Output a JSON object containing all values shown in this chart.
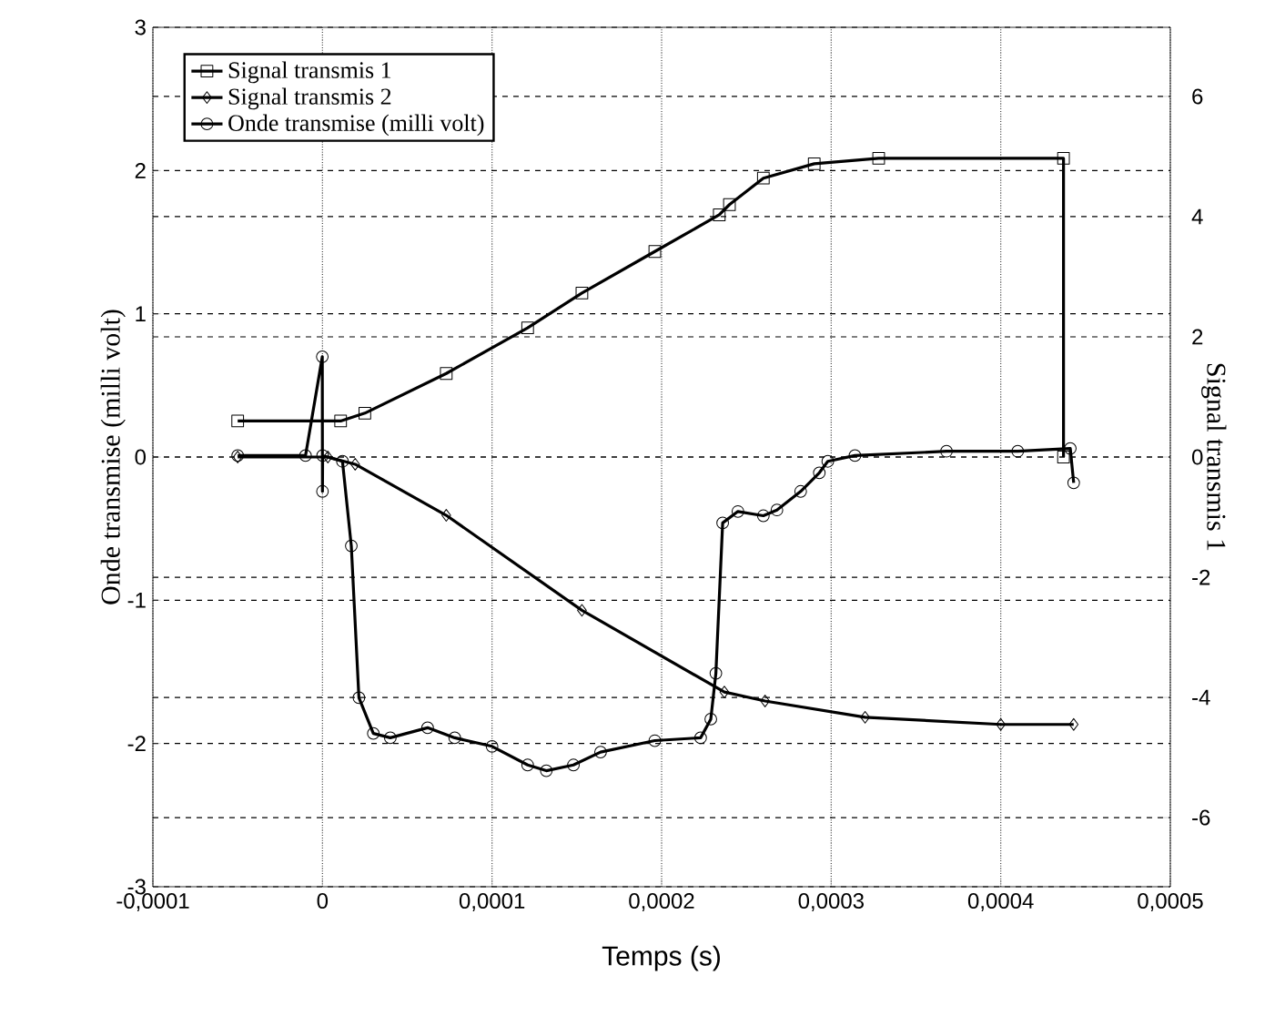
{
  "chart_data": {
    "type": "line",
    "xlabel": "Temps (s)",
    "ylabel": "Onde transmise (milli volt)",
    "y2label": "Signal transmis 1",
    "xlim": [
      -0.0001,
      0.0005
    ],
    "xticks": [
      {
        "value": -0.0001,
        "label": "-0,0001"
      },
      {
        "value": 0,
        "label": "0"
      },
      {
        "value": 0.0001,
        "label": "0,0001"
      },
      {
        "value": 0.0002,
        "label": "0,0002"
      },
      {
        "value": 0.0003,
        "label": "0,0003"
      },
      {
        "value": 0.0004,
        "label": "0,0004"
      },
      {
        "value": 0.0005,
        "label": "0,0005"
      }
    ],
    "ylim": [
      -3,
      3
    ],
    "yticks": [
      -3,
      -2,
      -1,
      0,
      1,
      2,
      3
    ],
    "y2lim": [
      -7.15,
      7.15
    ],
    "y2ticks": [
      -6,
      -4,
      -2,
      0,
      2,
      4,
      6
    ],
    "grid": true,
    "legend": "top left",
    "series": [
      {
        "name": "Signal transmis 1",
        "color": "#000000",
        "axis": "y2",
        "marker": "square",
        "x": [
          -5e-05,
          1.07e-05,
          2.5e-05,
          7.3e-05,
          0.000121,
          0.000153,
          0.000196,
          0.000234,
          0.00024,
          0.00026,
          0.00029,
          0.000328,
          0.000437,
          0.000437
        ],
        "values": [
          0.6,
          0.6,
          0.73,
          1.39,
          2.15,
          2.73,
          3.42,
          4.03,
          4.2,
          4.64,
          4.88,
          4.97,
          4.97,
          0
        ]
      },
      {
        "name": "Signal transmis 2",
        "color": "#000000",
        "axis": "y2",
        "marker": "diamond",
        "x": [
          -5e-05,
          3.2e-06,
          1.93e-05,
          7.3e-05,
          0.000153,
          0.000237,
          0.000261,
          0.00032,
          0.0004,
          0.000443
        ],
        "values": [
          0,
          0,
          -0.12,
          -0.97,
          -2.55,
          -3.91,
          -4.06,
          -4.33,
          -4.45,
          -4.45
        ]
      },
      {
        "name": "Onde transmise (milli volt)",
        "color": "#000000",
        "axis": "y",
        "marker": "circle",
        "x": [
          -5e-05,
          -1e-05,
          -1e-07,
          0,
          1e-07,
          1.18e-05,
          1.7e-05,
          2.15e-05,
          3e-05,
          4e-05,
          6.2e-05,
          7.8e-05,
          0.0001,
          0.000121,
          0.000132,
          0.000148,
          0.000164,
          0.000196,
          0.000223,
          0.000229,
          0.000232,
          0.000236,
          0.000245,
          0.00026,
          0.000268,
          0.000282,
          0.000293,
          0.000298,
          0.000314,
          0.000368,
          0.00041,
          0.000441,
          0.000443
        ],
        "values": [
          0.01,
          0.01,
          0.7,
          -0.24,
          0.01,
          -0.03,
          -0.62,
          -1.68,
          -1.93,
          -1.96,
          -1.89,
          -1.96,
          -2.02,
          -2.15,
          -2.19,
          -2.15,
          -2.06,
          -1.98,
          -1.96,
          -1.83,
          -1.51,
          -0.46,
          -0.38,
          -0.41,
          -0.37,
          -0.24,
          -0.11,
          -0.03,
          0.01,
          0.04,
          0.04,
          0.06,
          -0.18
        ]
      }
    ]
  }
}
